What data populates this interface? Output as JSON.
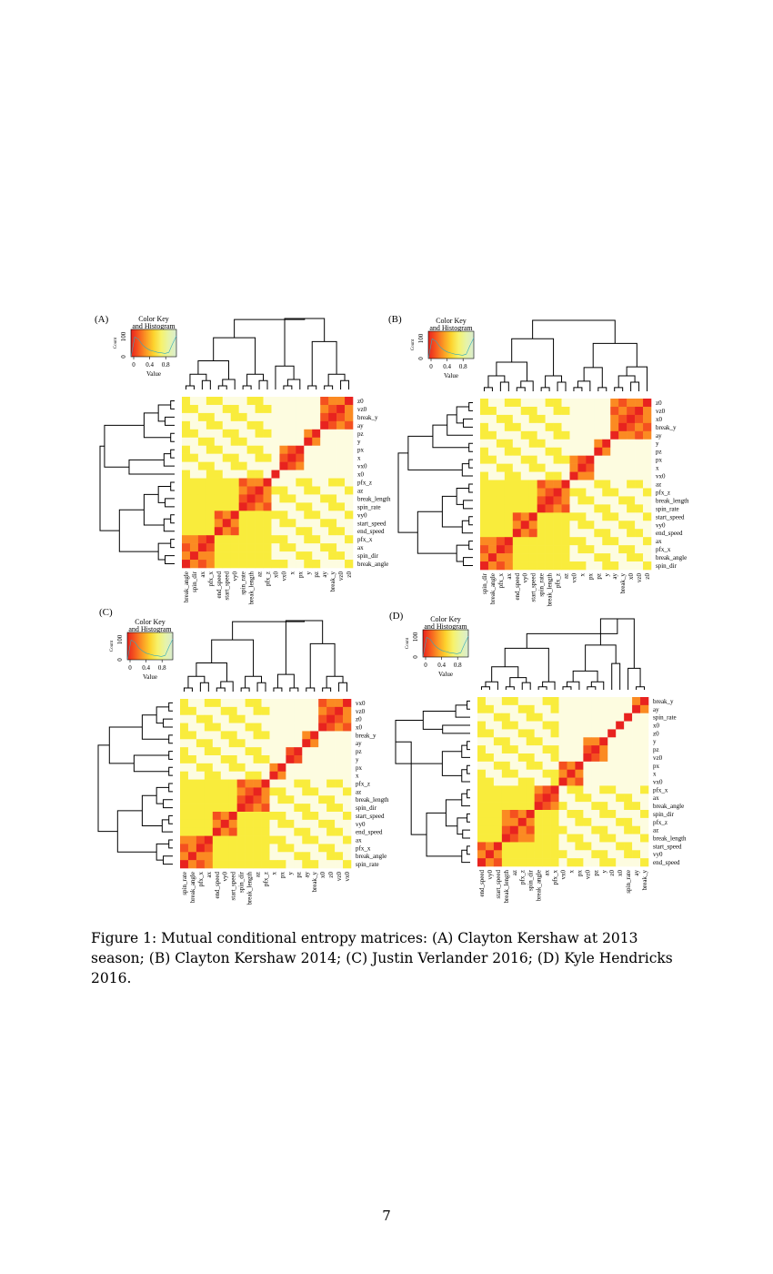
{
  "colors": {
    "scale": [
      "#e8231f",
      "#f4501f",
      "#fb8a22",
      "#fcc22a",
      "#f9ec3c",
      "#fbf7ae",
      "#fdfce0"
    ],
    "dendrogram": "#000000"
  },
  "color_key": {
    "title_line1": "Color Key",
    "title_line2": "and Histogram",
    "ylabel": "Count",
    "ytick": "100",
    "ytick0": "0",
    "xticks": [
      "0",
      "0.4",
      "0.8"
    ],
    "xlabel": "Value"
  },
  "chart_data": [
    {
      "type": "heatmap",
      "panel": "(A)",
      "rows": [
        "z0",
        "vz0",
        "break_y",
        "ay",
        "pz",
        "y",
        "px",
        "x",
        "vx0",
        "x0",
        "pfx_z",
        "az",
        "break_length",
        "spin_rate",
        "vy0",
        "start_speed",
        "end_speed",
        "pfx_x",
        "ax",
        "spin_dir",
        "break_angle"
      ],
      "cols": [
        "break_angle",
        "spin_dir",
        "ax",
        "pfx_x",
        "end_speed",
        "start_speed",
        "vy0",
        "spin_rate",
        "break_length",
        "az",
        "pfx_z",
        "x0",
        "vx0",
        "x",
        "px",
        "y",
        "pz",
        "ay",
        "break_y",
        "vz0",
        "z0"
      ],
      "clusters": [
        [
          "z0",
          "vz0",
          "break_y",
          "ay"
        ],
        [
          "pz",
          "y"
        ],
        [
          "px",
          "x",
          "vx0"
        ],
        [
          "x0"
        ],
        [
          "pfx_z",
          "az",
          "break_length",
          "spin_rate"
        ],
        [
          "vy0",
          "start_speed",
          "end_speed"
        ],
        [
          "pfx_x",
          "ax",
          "spin_dir",
          "break_angle"
        ]
      ],
      "group_members": [
        [
          "pfx_z",
          "az",
          "break_length",
          "spin_rate",
          "vy0",
          "start_speed",
          "end_speed",
          "pfx_x",
          "ax",
          "spin_dir",
          "break_angle"
        ]
      ],
      "value_range": [
        0,
        1
      ]
    },
    {
      "type": "heatmap",
      "panel": "(B)",
      "rows": [
        "z0",
        "vz0",
        "x0",
        "break_y",
        "ay",
        "y",
        "pz",
        "px",
        "x",
        "vx0",
        "az",
        "pfx_z",
        "break_length",
        "spin_rate",
        "start_speed",
        "vy0",
        "end_speed",
        "ax",
        "pfx_x",
        "break_angle",
        "spin_dir"
      ],
      "cols": [
        "spin_dir",
        "break_angle",
        "pfx_x",
        "ax",
        "end_speed",
        "vy0",
        "start_speed",
        "spin_rate",
        "break_length",
        "pfx_z",
        "az",
        "vx0",
        "x",
        "px",
        "pz",
        "y",
        "ay",
        "break_y",
        "x0",
        "vz0",
        "z0"
      ],
      "clusters": [
        [
          "z0",
          "vz0",
          "x0",
          "break_y",
          "ay"
        ],
        [
          "y",
          "pz"
        ],
        [
          "px",
          "x",
          "vx0"
        ],
        [
          "az",
          "pfx_z",
          "break_length",
          "spin_rate"
        ],
        [
          "start_speed",
          "vy0",
          "end_speed"
        ],
        [
          "ax",
          "pfx_x",
          "break_angle",
          "spin_dir"
        ]
      ],
      "group_members": [
        [
          "az",
          "pfx_z",
          "break_length",
          "spin_rate",
          "start_speed",
          "vy0",
          "end_speed",
          "ax",
          "pfx_x",
          "break_angle",
          "spin_dir"
        ]
      ],
      "value_range": [
        0,
        1
      ]
    },
    {
      "type": "heatmap",
      "panel": "(C)",
      "rows": [
        "vx0",
        "vz0",
        "z0",
        "x0",
        "break_y",
        "ay",
        "pz",
        "y",
        "px",
        "x",
        "pfx_z",
        "az",
        "break_length",
        "spin_dir",
        "start_speed",
        "vy0",
        "end_speed",
        "ax",
        "pfx_x",
        "break_angle",
        "spin_rate"
      ],
      "cols": [
        "spin_rate",
        "break_angle",
        "pfx_x",
        "ax",
        "end_speed",
        "vy0",
        "start_speed",
        "spin_dir",
        "break_length",
        "az",
        "pfx_z",
        "x",
        "px",
        "y",
        "pz",
        "ay",
        "break_y",
        "x0",
        "z0",
        "vz0",
        "vx0"
      ],
      "clusters": [
        [
          "vx0",
          "vz0",
          "z0",
          "x0"
        ],
        [
          "break_y",
          "ay"
        ],
        [
          "pz",
          "y"
        ],
        [
          "px",
          "x"
        ],
        [
          "pfx_z",
          "az",
          "break_length",
          "spin_dir"
        ],
        [
          "start_speed",
          "vy0",
          "end_speed"
        ],
        [
          "ax",
          "pfx_x",
          "break_angle",
          "spin_rate"
        ]
      ],
      "group_members": [
        [
          "pfx_z",
          "az",
          "break_length",
          "spin_dir",
          "start_speed",
          "vy0",
          "end_speed",
          "ax",
          "pfx_x",
          "break_angle",
          "spin_rate"
        ]
      ],
      "value_range": [
        0,
        1
      ]
    },
    {
      "type": "heatmap",
      "panel": "(D)",
      "rows": [
        "break_y",
        "ay",
        "spin_rate",
        "x0",
        "z0",
        "y",
        "pz",
        "vz0",
        "px",
        "x",
        "vx0",
        "pfx_x",
        "ax",
        "break_angle",
        "spin_dir",
        "pfx_z",
        "az",
        "break_length",
        "start_speed",
        "vy0",
        "end_speed"
      ],
      "cols": [
        "end_speed",
        "vy0",
        "start_speed",
        "break_length",
        "az",
        "pfx_z",
        "spin_dir",
        "break_angle",
        "ax",
        "pfx_x",
        "vx0",
        "x",
        "px",
        "vz0",
        "pz",
        "y",
        "z0",
        "x0",
        "spin_rate",
        "ay",
        "break_y"
      ],
      "clusters": [
        [
          "break_y",
          "ay"
        ],
        [
          "spin_rate"
        ],
        [
          "x0"
        ],
        [
          "z0"
        ],
        [
          "y",
          "pz",
          "vz0"
        ],
        [
          "px",
          "x",
          "vx0"
        ],
        [
          "pfx_x",
          "ax",
          "break_angle"
        ],
        [
          "spin_dir",
          "pfx_z",
          "az",
          "break_length"
        ],
        [
          "start_speed",
          "vy0",
          "end_speed"
        ]
      ],
      "group_members": [
        [
          "pfx_x",
          "ax",
          "break_angle",
          "spin_dir",
          "pfx_z",
          "az",
          "break_length",
          "start_speed",
          "vy0",
          "end_speed"
        ]
      ],
      "value_range": [
        0,
        1
      ]
    }
  ],
  "caption": "Figure 1: Mutual conditional entropy matrices: (A) Clayton Kershaw at 2013 season; (B) Clayton Kershaw 2014; (C) Justin Verlander 2016; (D) Kyle Hendricks 2016.",
  "page_number": "7"
}
